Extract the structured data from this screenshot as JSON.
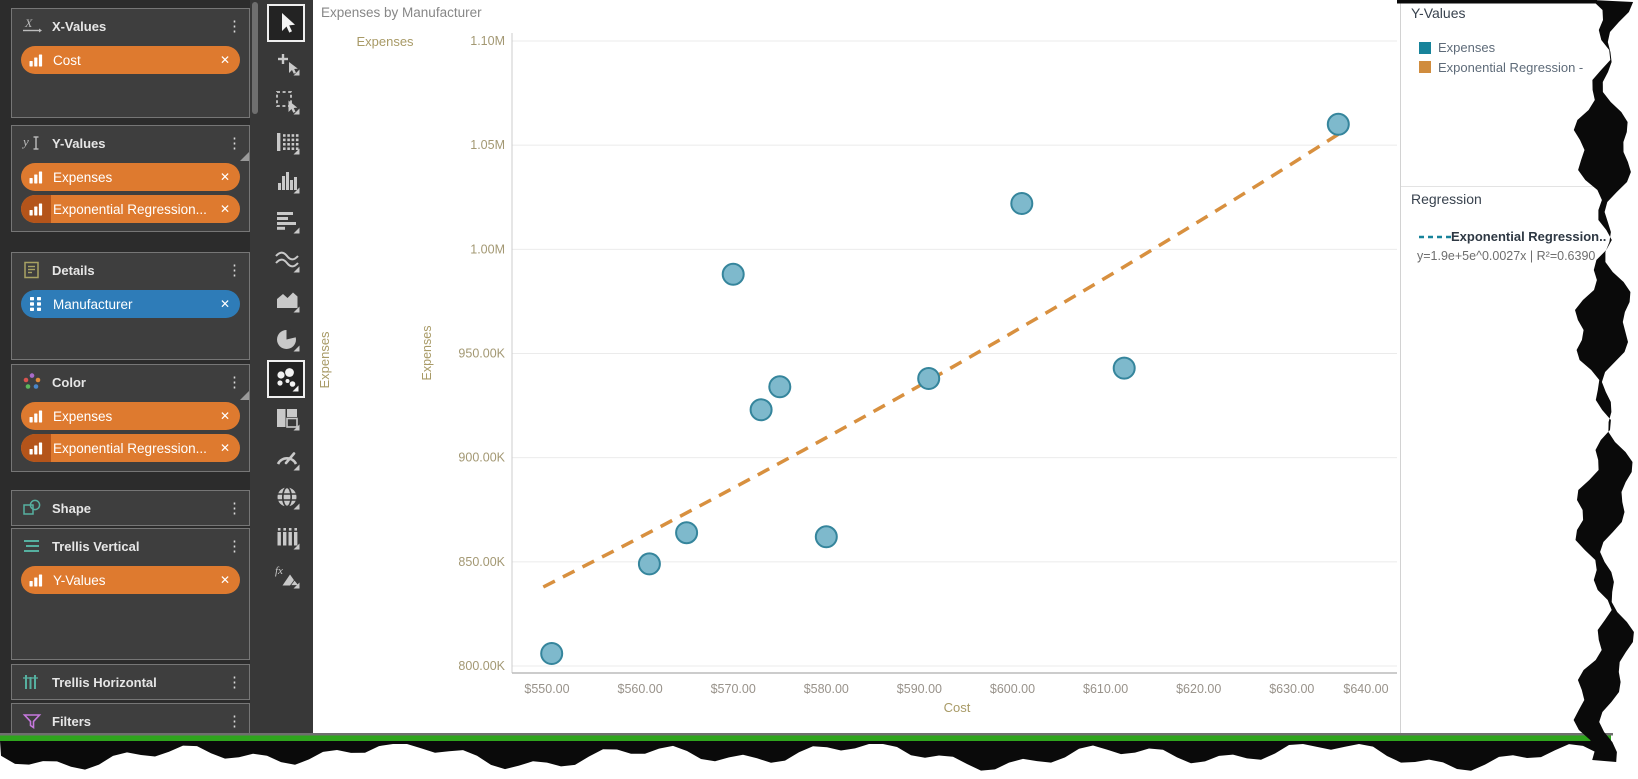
{
  "sidebar": {
    "sections": [
      {
        "id": "x-values",
        "label": "X-Values",
        "icon": "x-axis-icon",
        "fold": false,
        "items": [
          {
            "label": "Cost",
            "color": "orange",
            "icon": "bar-chart",
            "dark_icon": false
          }
        ]
      },
      {
        "id": "y-values",
        "label": "Y-Values",
        "icon": "y-axis-icon",
        "fold": true,
        "items": [
          {
            "label": "Expenses",
            "color": "orange",
            "icon": "bar-chart",
            "dark_icon": false
          },
          {
            "label": "Exponential Regression...",
            "color": "orange",
            "icon": "bar-chart",
            "dark_icon": true
          }
        ]
      },
      {
        "id": "details",
        "label": "Details",
        "icon": "document-icon",
        "fold": false,
        "items": [
          {
            "label": "Manufacturer",
            "color": "blue",
            "icon": "grid-dots",
            "dark_icon": false
          }
        ]
      },
      {
        "id": "color",
        "label": "Color",
        "icon": "color-dots-icon",
        "fold": true,
        "items": [
          {
            "label": "Expenses",
            "color": "orange",
            "icon": "bar-chart",
            "dark_icon": false
          },
          {
            "label": "Exponential Regression...",
            "color": "orange",
            "icon": "bar-chart",
            "dark_icon": true
          }
        ]
      },
      {
        "id": "shape",
        "label": "Shape",
        "icon": "shape-icon",
        "fold": false,
        "items": []
      },
      {
        "id": "trellis-vertical",
        "label": "Trellis Vertical",
        "icon": "trellis-vertical-icon",
        "fold": false,
        "items": [
          {
            "label": "Y-Values",
            "color": "orange",
            "icon": "bar-chart",
            "dark_icon": false
          }
        ]
      },
      {
        "id": "trellis-horizontal",
        "label": "Trellis Horizontal",
        "icon": "trellis-horizontal-icon",
        "fold": false,
        "items": []
      },
      {
        "id": "filters",
        "label": "Filters",
        "icon": "funnel-icon",
        "fold": false,
        "items": []
      }
    ]
  },
  "toolbar": {
    "tools": [
      {
        "name": "pointer-tool",
        "selected": true,
        "dropdown": false
      },
      {
        "name": "add-tool",
        "selected": false,
        "dropdown": true
      },
      {
        "name": "marquee-select-tool",
        "selected": false,
        "dropdown": true
      },
      {
        "name": "grid-tool",
        "selected": false,
        "dropdown": true
      },
      {
        "name": "column-chart-tool",
        "selected": false,
        "dropdown": true
      },
      {
        "name": "bar-chart-tool",
        "selected": false,
        "dropdown": true
      },
      {
        "name": "line-chart-tool",
        "selected": false,
        "dropdown": true
      },
      {
        "name": "area-chart-tool",
        "selected": false,
        "dropdown": true
      },
      {
        "name": "pie-chart-tool",
        "selected": false,
        "dropdown": true
      },
      {
        "name": "scatter-chart-tool",
        "selected": true,
        "dropdown": true
      },
      {
        "name": "treemap-tool",
        "selected": false,
        "dropdown": true
      },
      {
        "name": "gauge-tool",
        "selected": false,
        "dropdown": true
      },
      {
        "name": "map-tool",
        "selected": false,
        "dropdown": true
      },
      {
        "name": "cards-tool",
        "selected": false,
        "dropdown": true
      },
      {
        "name": "formula-tool",
        "selected": false,
        "dropdown": true
      }
    ]
  },
  "chart": {
    "title": "Expenses by Manufacturer",
    "top_measure_label": "Expenses",
    "trellis_row_label": "Expenses",
    "y_axis_title": "Expenses",
    "x_axis_title": "Cost",
    "y_tick_labels": [
      "1.10M",
      "1.05M",
      "1.00M",
      "950.00K",
      "900.00K",
      "850.00K",
      "800.00K"
    ],
    "x_tick_labels": [
      "$550.00",
      "$560.00",
      "$570.00",
      "$580.00",
      "$590.00",
      "$600.00",
      "$610.00",
      "$620.00",
      "$630.00",
      "$640.00"
    ]
  },
  "chart_data": {
    "type": "scatter",
    "title": "Expenses by Manufacturer",
    "xlabel": "Cost",
    "ylabel": "Expenses",
    "x_ticks": [
      550,
      560,
      570,
      580,
      590,
      600,
      610,
      620,
      630,
      640
    ],
    "y_ticks": [
      1100000,
      1050000,
      1000000,
      950000,
      900000,
      850000,
      800000
    ],
    "x_range": [
      546.2,
      641.3
    ],
    "y_range": [
      796000,
      1104000
    ],
    "grid": "horizontal",
    "legend_position": "right",
    "series": [
      {
        "name": "Expenses",
        "type": "points",
        "color": "#7EB9CC",
        "stroke": "#35859C",
        "points": [
          [
            550.5,
            806000
          ],
          [
            561,
            849000
          ],
          [
            565,
            864000
          ],
          [
            580,
            862000
          ],
          [
            573,
            923000
          ],
          [
            575,
            934000
          ],
          [
            570,
            988000
          ],
          [
            591,
            938000
          ],
          [
            601,
            1022000
          ],
          [
            612,
            943000
          ],
          [
            635,
            1060000
          ]
        ]
      },
      {
        "name": "Exponential Regression - Expenses by Cost",
        "type": "exponential-regression",
        "color": "#D8903F",
        "a": 190000,
        "b": 0.0027,
        "r2": 0.639,
        "x_start": 549.6,
        "x_end": 636,
        "dash": [
          13,
          9
        ]
      }
    ]
  },
  "right_panel": {
    "y_values_header": "Y-Values",
    "legend": [
      {
        "label": "Expenses",
        "color": "#17839A"
      },
      {
        "label": "Exponential Regression -",
        "color": "#D08C3E"
      }
    ],
    "regression_header": "Regression",
    "regression_entry": {
      "name": "Exponential Regression..",
      "formula": "y=1.9e+5e^0.0027x | R²=0.6390",
      "line_color": "#17839A"
    }
  },
  "colors": {
    "pill_orange": "#DE7A2F",
    "pill_orange_dark": "#B4541A",
    "pill_blue": "#2E7CB8",
    "point_fill": "#7EB9CC",
    "point_stroke": "#35859C",
    "regression_line": "#D8903F",
    "axis_text": "#A39873",
    "bottom_line_green": "#2FA51D"
  }
}
